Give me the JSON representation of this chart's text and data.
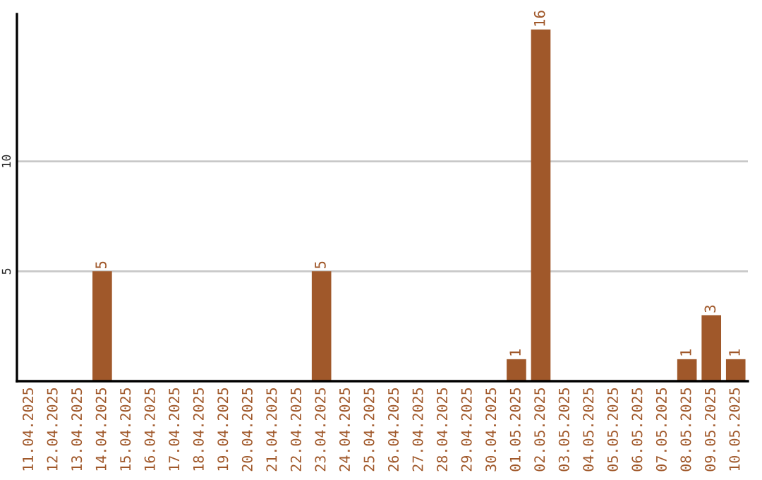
{
  "chart_data": {
    "type": "bar",
    "categories": [
      "11.04.2025",
      "12.04.2025",
      "13.04.2025",
      "14.04.2025",
      "15.04.2025",
      "16.04.2025",
      "17.04.2025",
      "18.04.2025",
      "19.04.2025",
      "20.04.2025",
      "21.04.2025",
      "22.04.2025",
      "23.04.2025",
      "24.04.2025",
      "25.04.2025",
      "26.04.2025",
      "27.04.2025",
      "28.04.2025",
      "29.04.2025",
      "30.04.2025",
      "01.05.2025",
      "02.05.2025",
      "03.05.2025",
      "04.05.2025",
      "05.05.2025",
      "06.05.2025",
      "07.05.2025",
      "08.05.2025",
      "09.05.2025",
      "10.05.2025"
    ],
    "values": [
      0,
      0,
      0,
      5,
      0,
      0,
      0,
      0,
      0,
      0,
      0,
      0,
      5,
      0,
      0,
      0,
      0,
      0,
      0,
      0,
      1,
      16,
      0,
      0,
      0,
      0,
      0,
      1,
      3,
      1
    ],
    "value_labels": [
      null,
      null,
      null,
      "5",
      null,
      null,
      null,
      null,
      null,
      null,
      null,
      null,
      "5",
      null,
      null,
      null,
      null,
      null,
      null,
      null,
      "1",
      "16",
      null,
      null,
      null,
      null,
      null,
      "1",
      "3",
      "1"
    ],
    "color": "#a0582a",
    "ylim": [
      0,
      16.7
    ],
    "yticks": [
      5,
      10
    ],
    "grid": "y"
  }
}
